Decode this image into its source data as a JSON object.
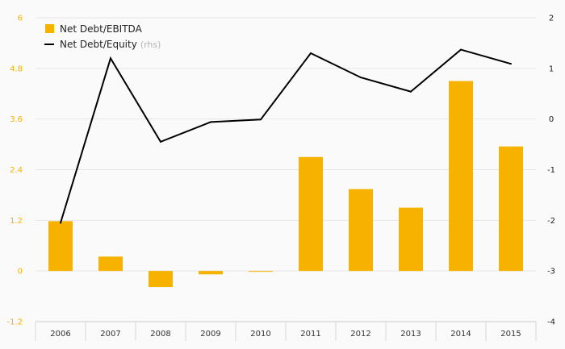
{
  "chart_data": {
    "type": "bar",
    "categories": [
      "2006",
      "2007",
      "2008",
      "2009",
      "2010",
      "2011",
      "2012",
      "2013",
      "2014",
      "2015"
    ],
    "series": [
      {
        "name": "Net Debt/EBITDA",
        "type": "bar",
        "axis": "left",
        "color": "#f7b200",
        "values": [
          1.18,
          0.34,
          -0.38,
          -0.08,
          -0.02,
          2.7,
          1.94,
          1.5,
          4.5,
          2.95
        ]
      },
      {
        "name": "Net Debt/Equity",
        "type": "line",
        "axis": "right",
        "color": "#000000",
        "values": [
          -2.05,
          1.2,
          -0.45,
          -0.06,
          -0.01,
          1.3,
          0.82,
          0.54,
          1.37,
          1.09
        ]
      }
    ],
    "y_left": {
      "min": -1.2,
      "max": 6,
      "ticks": [
        "-1.2",
        "0",
        "1.2",
        "2.4",
        "3.6",
        "4.8",
        "6"
      ]
    },
    "y_right": {
      "min": -4,
      "max": 2,
      "ticks": [
        "-4",
        "-3",
        "-2",
        "-1",
        "0",
        "1",
        "2"
      ]
    },
    "legend": {
      "placement": "top-left",
      "items": [
        {
          "label": "Net Debt/EBITDA",
          "suffix": ""
        },
        {
          "label": "Net Debt/Equity",
          "suffix": "(rhs)"
        }
      ]
    },
    "grid": true,
    "title": "",
    "xlabel": "",
    "ylabel": ""
  }
}
